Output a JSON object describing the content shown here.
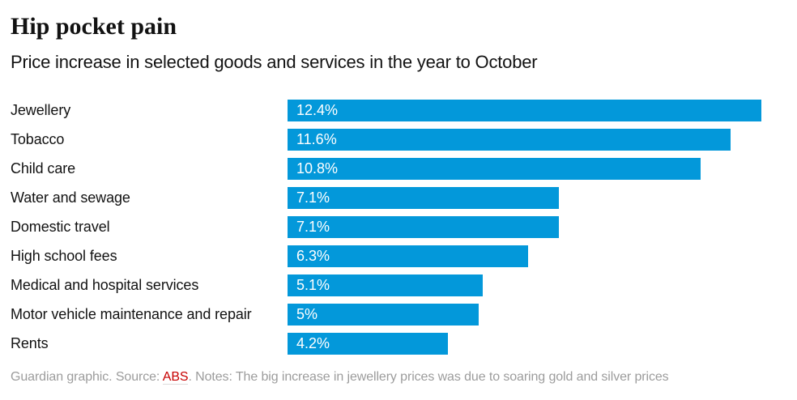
{
  "header": {
    "title": "Hip pocket pain",
    "subtitle": "Price increase in selected goods and services in the year to October"
  },
  "chart_data": {
    "type": "bar",
    "orientation": "horizontal",
    "title": "Hip pocket pain",
    "subtitle": "Price increase in selected goods and services in the year to October",
    "categories": [
      "Jewellery",
      "Tobacco",
      "Child care",
      "Water and sewage",
      "Domestic travel",
      "High school fees",
      "Medical and hospital services",
      "Motor vehicle maintenance and repair",
      "Rents"
    ],
    "values": [
      12.4,
      11.6,
      10.8,
      7.1,
      7.1,
      6.3,
      5.1,
      5,
      4.2
    ],
    "value_labels": [
      "12.4%",
      "11.6%",
      "10.8%",
      "7.1%",
      "7.1%",
      "6.3%",
      "5.1%",
      "5%",
      "4.2%"
    ],
    "unit": "%",
    "xlim": [
      0,
      12.4
    ],
    "grid": false,
    "legend": false,
    "bar_color": "#0398da"
  },
  "footer": {
    "prefix": "Guardian graphic. Source: ",
    "source_link": "ABS",
    "suffix": ". Notes: The big increase in jewellery prices was due to soaring gold and silver prices"
  },
  "colors": {
    "bar": "#0398da",
    "title_text": "#121212",
    "value_text": "#ffffff",
    "footnote_text": "#9c9c9c",
    "link_text": "#c70000",
    "link_underline": "#dcdcdc",
    "background": "#ffffff"
  }
}
